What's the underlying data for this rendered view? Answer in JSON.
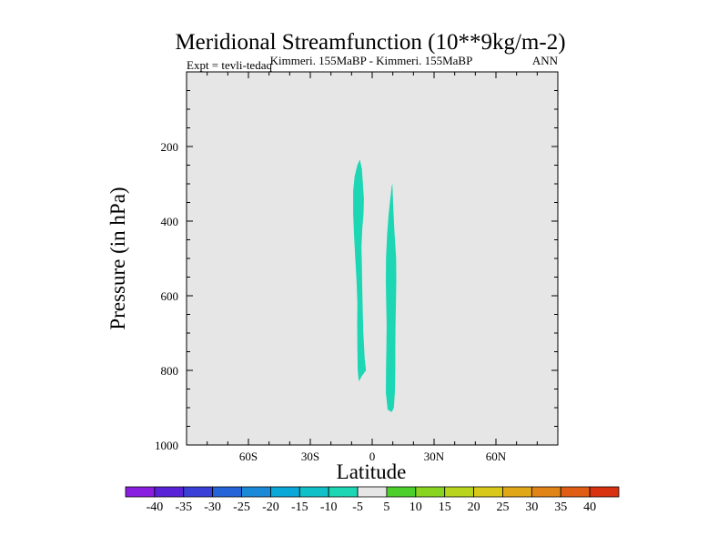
{
  "chart_data": {
    "type": "contour",
    "title": "Meridional Streamfunction (10**9kg/m-2)",
    "subtitle_left": "Expt = tevli-tedaq",
    "subtitle_center": "Kimmeri. 155MaBP - Kimmeri. 155MaBP",
    "subtitle_right": "ANN",
    "xlabel": "Latitude",
    "ylabel": "Pressure (in hPa)",
    "xlim": [
      -90,
      90
    ],
    "ylim": [
      1000,
      0
    ],
    "x_ticks": [
      {
        "value": -60,
        "label": "60S"
      },
      {
        "value": -30,
        "label": "30S"
      },
      {
        "value": 0,
        "label": "0"
      },
      {
        "value": 30,
        "label": "30N"
      },
      {
        "value": 60,
        "label": "60N"
      }
    ],
    "y_ticks": [
      {
        "value": 200,
        "label": "200"
      },
      {
        "value": 400,
        "label": "400"
      },
      {
        "value": 600,
        "label": "600"
      },
      {
        "value": 800,
        "label": "800"
      },
      {
        "value": 1000,
        "label": "1000"
      }
    ],
    "background_color": "#e6e6e6",
    "regions": [
      {
        "name": "region-a",
        "level_range": "-10 to -5",
        "color": "#1cd6b4",
        "points": [
          [
            -6,
            235
          ],
          [
            -5,
            260
          ],
          [
            -4.5,
            300
          ],
          [
            -4,
            340
          ],
          [
            -4.2,
            380
          ],
          [
            -4.8,
            420
          ],
          [
            -5.2,
            470
          ],
          [
            -5,
            520
          ],
          [
            -4.8,
            580
          ],
          [
            -4.6,
            640
          ],
          [
            -4.3,
            700
          ],
          [
            -3.6,
            770
          ],
          [
            -3,
            800
          ],
          [
            -5,
            815
          ],
          [
            -6.5,
            830
          ],
          [
            -7,
            800
          ],
          [
            -7.2,
            740
          ],
          [
            -7.3,
            680
          ],
          [
            -7.2,
            620
          ],
          [
            -7.6,
            560
          ],
          [
            -8.2,
            500
          ],
          [
            -8.8,
            440
          ],
          [
            -9.2,
            380
          ],
          [
            -9.2,
            320
          ],
          [
            -8.5,
            280
          ],
          [
            -7.2,
            250
          ]
        ]
      },
      {
        "name": "region-b",
        "level_range": "-10 to -5",
        "color": "#1cd6b4",
        "points": [
          [
            9.8,
            300
          ],
          [
            10.2,
            360
          ],
          [
            10.8,
            430
          ],
          [
            11.6,
            500
          ],
          [
            11.7,
            560
          ],
          [
            11.5,
            620
          ],
          [
            11.3,
            680
          ],
          [
            11.2,
            740
          ],
          [
            11.2,
            800
          ],
          [
            11,
            860
          ],
          [
            10.5,
            900
          ],
          [
            9.5,
            912
          ],
          [
            7.5,
            905
          ],
          [
            6.6,
            860
          ],
          [
            6.7,
            800
          ],
          [
            6.9,
            740
          ],
          [
            7,
            680
          ],
          [
            6.8,
            620
          ],
          [
            6.6,
            560
          ],
          [
            6.7,
            500
          ],
          [
            7.2,
            440
          ],
          [
            8,
            380
          ],
          [
            8.8,
            340
          ],
          [
            9.5,
            305
          ]
        ]
      }
    ],
    "colorbar": {
      "labels": [
        "-40",
        "-35",
        "-30",
        "-25",
        "-20",
        "-15",
        "-10",
        "-5",
        "5",
        "10",
        "15",
        "20",
        "25",
        "30",
        "35",
        "40"
      ],
      "colors": [
        "#8a1ee0",
        "#5a22d6",
        "#3a3fd8",
        "#2563d8",
        "#1a8ad8",
        "#0aa8d8",
        "#10c0c8",
        "#1cd6b4",
        "#e6e6e6",
        "#4ccf2a",
        "#88d420",
        "#b8d41c",
        "#d8c81a",
        "#e0a818",
        "#e08418",
        "#e05e14",
        "#d83210"
      ]
    }
  }
}
